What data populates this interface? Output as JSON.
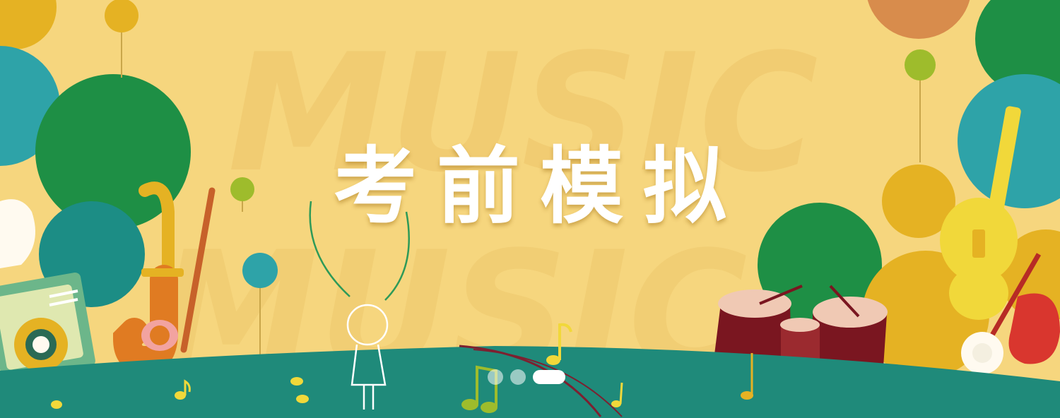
{
  "banner": {
    "title": "考前模拟",
    "watermark_1": "MUSIC",
    "watermark_2": "MUSIC"
  },
  "carousel": {
    "slides": 3,
    "active_index": 2
  },
  "colors": {
    "background": "#f6d67e",
    "ground": "#1f8a7a",
    "green": "#1e8f45",
    "teal": "#2ea3a8",
    "mustard": "#e5b223",
    "orange": "#e07b22",
    "title_text": "#ffffff"
  }
}
